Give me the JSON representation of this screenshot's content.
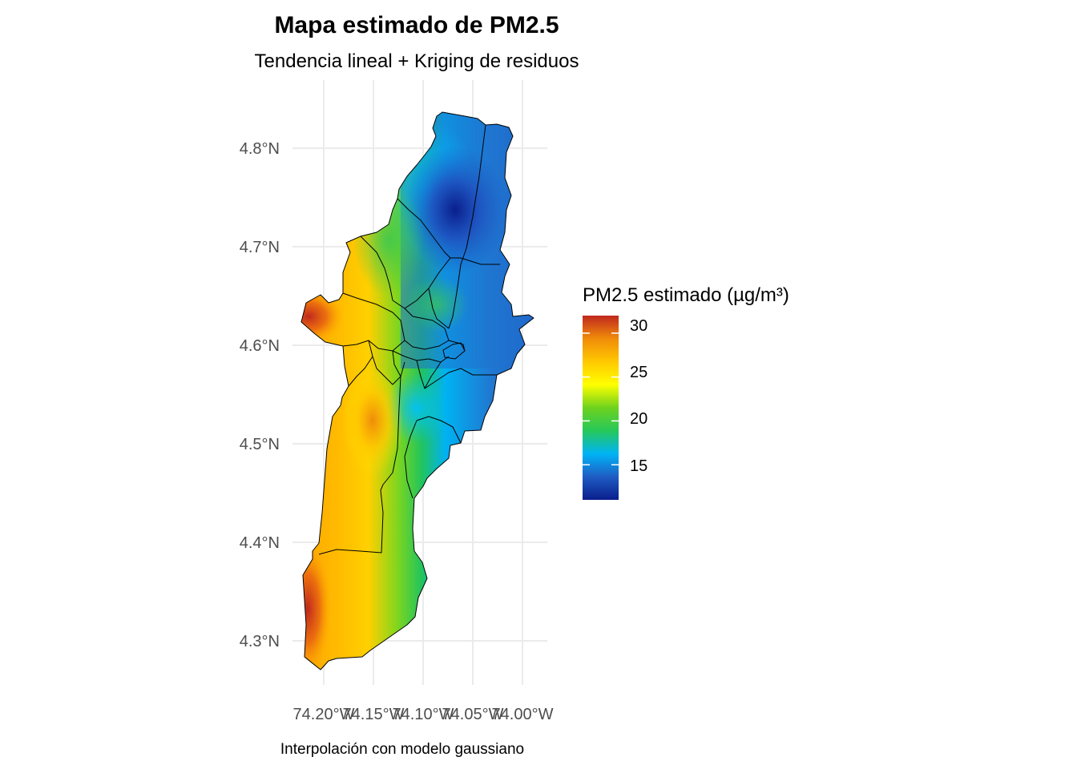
{
  "title": "Mapa estimado de PM2.5",
  "subtitle": "Tendencia lineal + Kriging de residuos",
  "caption": "Interpolación con modelo gaussiano",
  "axes": {
    "y_ticks": [
      "4.8°N",
      "4.7°N",
      "4.6°N",
      "4.5°N",
      "4.4°N",
      "4.3°N"
    ],
    "x_ticks": [
      "74.20°W",
      "74.15°W",
      "74.10°W",
      "74.05°W",
      "74.00°W"
    ]
  },
  "legend": {
    "title": "PM2.5 estimado (µg/m³)",
    "labels": [
      "30",
      "25",
      "20",
      "15"
    ],
    "range": [
      11,
      32
    ],
    "colors": [
      "#0a1e8c",
      "#1f5cc4",
      "#00b4f5",
      "#26c85a",
      "#6ed21e",
      "#ffff00",
      "#ffc800",
      "#f08c0a",
      "#c0281e"
    ]
  },
  "chart_data": {
    "type": "heatmap",
    "title": "Mapa estimado de PM2.5",
    "subtitle": "Tendencia lineal + Kriging de residuos",
    "xlabel": "",
    "ylabel": "",
    "x_ticks": [
      -74.2,
      -74.15,
      -74.1,
      -74.05,
      -74.0
    ],
    "y_ticks": [
      4.8,
      4.7,
      4.6,
      4.5,
      4.4,
      4.3
    ],
    "xlim": [
      -74.23,
      -73.975
    ],
    "ylim": [
      4.25,
      4.85
    ],
    "grid": true,
    "legend_position": "right",
    "value_range": [
      11,
      32
    ],
    "hotspots": [
      {
        "lon": -74.066,
        "lat": 4.737,
        "value": 11
      },
      {
        "lon": -74.142,
        "lat": 4.53,
        "value": 28
      },
      {
        "lon": -74.22,
        "lat": 4.33,
        "value": 31
      },
      {
        "lon": -74.21,
        "lat": 4.625,
        "value": 30
      },
      {
        "lon": -74.09,
        "lat": 4.64,
        "value": 19
      }
    ]
  }
}
